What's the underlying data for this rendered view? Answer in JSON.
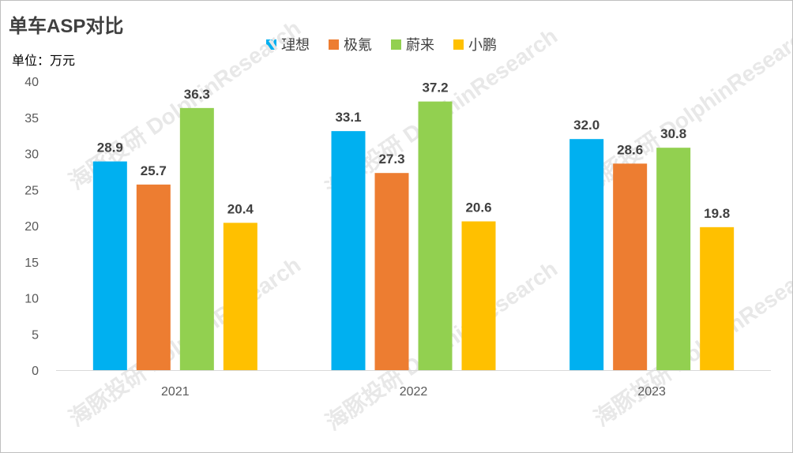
{
  "title": "单车ASP对比",
  "unit_label": "单位：万元",
  "watermark": "海豚投研 DolphinResearch",
  "colors": {
    "理想": "#00B0F0",
    "极氪": "#ED7D31",
    "蔚来": "#92D050",
    "小鹏": "#FFC000"
  },
  "chart_data": {
    "type": "bar",
    "categories": [
      "2021",
      "2022",
      "2023"
    ],
    "series": [
      {
        "name": "理想",
        "color": "#00B0F0",
        "values": [
          28.9,
          33.1,
          32.0
        ]
      },
      {
        "name": "极氪",
        "color": "#ED7D31",
        "values": [
          25.7,
          27.3,
          28.6
        ]
      },
      {
        "name": "蔚来",
        "color": "#92D050",
        "values": [
          36.3,
          37.2,
          30.8
        ]
      },
      {
        "name": "小鹏",
        "color": "#FFC000",
        "values": [
          20.4,
          20.6,
          19.8
        ]
      }
    ],
    "value_labels": [
      [
        "28.9",
        "33.1",
        "32.0"
      ],
      [
        "25.7",
        "27.3",
        "28.6"
      ],
      [
        "36.3",
        "37.2",
        "30.8"
      ],
      [
        "20.4",
        "20.6",
        "19.8"
      ]
    ],
    "yticks": [
      "0",
      "5",
      "10",
      "15",
      "20",
      "25",
      "30",
      "35",
      "40"
    ],
    "ylim": [
      0,
      40
    ],
    "legend_position": "top-center",
    "grid": false
  }
}
